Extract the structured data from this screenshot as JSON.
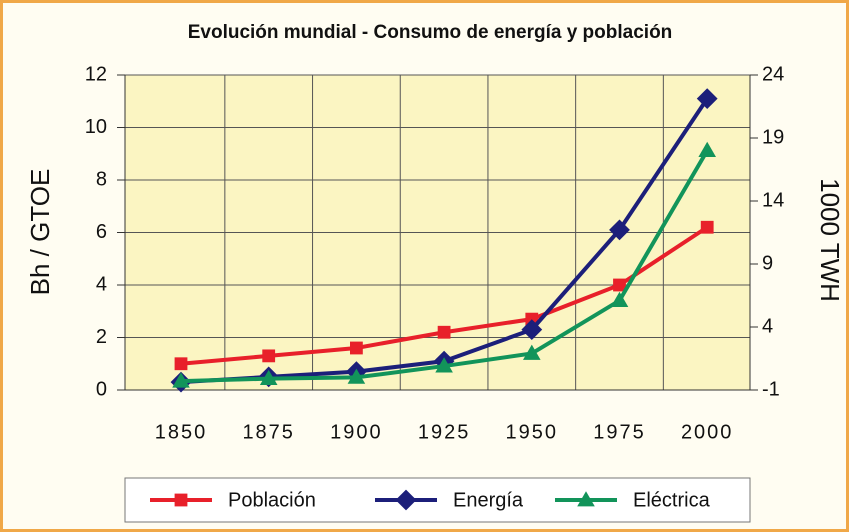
{
  "chart_data": {
    "type": "line",
    "title": "Evolución mundial - Consumo de energía y población",
    "ylabel": "Bh / GTOE",
    "y2label": "1000 TWH",
    "categories": [
      "1850",
      "1875",
      "1900",
      "1925",
      "1950",
      "1975",
      "2000"
    ],
    "series": [
      {
        "name": "Población",
        "color": "#e8202a",
        "marker": "square",
        "values": [
          1.0,
          1.3,
          1.6,
          2.2,
          2.7,
          4.0,
          6.2
        ]
      },
      {
        "name": "Energía",
        "color": "#1c1f7a",
        "marker": "diamond",
        "values": [
          0.3,
          0.5,
          0.7,
          1.1,
          2.3,
          6.1,
          11.1
        ]
      },
      {
        "name": "Eléctrica",
        "color": "#12945a",
        "marker": "triangle",
        "axis": "y2",
        "values": [
          -0.3,
          -0.1,
          0.0,
          0.9,
          1.9,
          6.1,
          18.0
        ]
      }
    ],
    "ylim": [
      0,
      12
    ],
    "yticks": [
      0,
      2,
      4,
      6,
      8,
      10,
      12
    ],
    "y2lim": [
      -1,
      24
    ],
    "y2ticks": [
      -1,
      4,
      9,
      14,
      19,
      24
    ],
    "grid": true,
    "legend": "bottom"
  }
}
